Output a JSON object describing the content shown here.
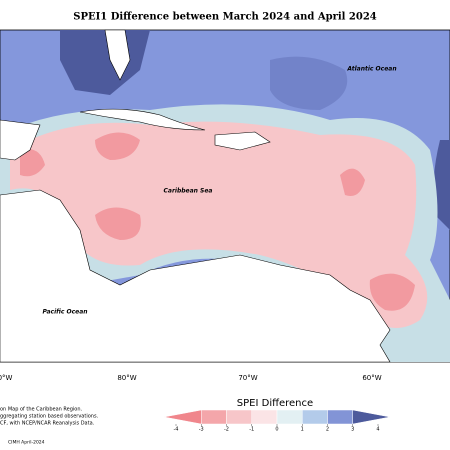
{
  "title": "SPEI1 Difference between March 2024 and April 2024",
  "map": {
    "labels": [
      "Atlantic Ocean",
      "Caribbean Sea",
      "Pacific Ocean"
    ],
    "longitudes": [
      "0°W",
      "80°W",
      "70°W",
      "60°W"
    ]
  },
  "legend": {
    "title": "SPEI Difference",
    "ticks": [
      -4,
      -3,
      -2,
      -1,
      0,
      1,
      2,
      3,
      4
    ],
    "colors": [
      "#f0868c",
      "#f4a6aa",
      "#f7c6c9",
      "#fbe4e6",
      "#e3f0f3",
      "#b3cbea",
      "#8294d6",
      "#4d5a9c"
    ]
  },
  "credits": [
    "on Map of the Caribbean Region.",
    "ggregating station based observations.",
    "CF, with NCEP/NCAR Reanalysis Data.",
    "CIMH April-2024"
  ]
}
